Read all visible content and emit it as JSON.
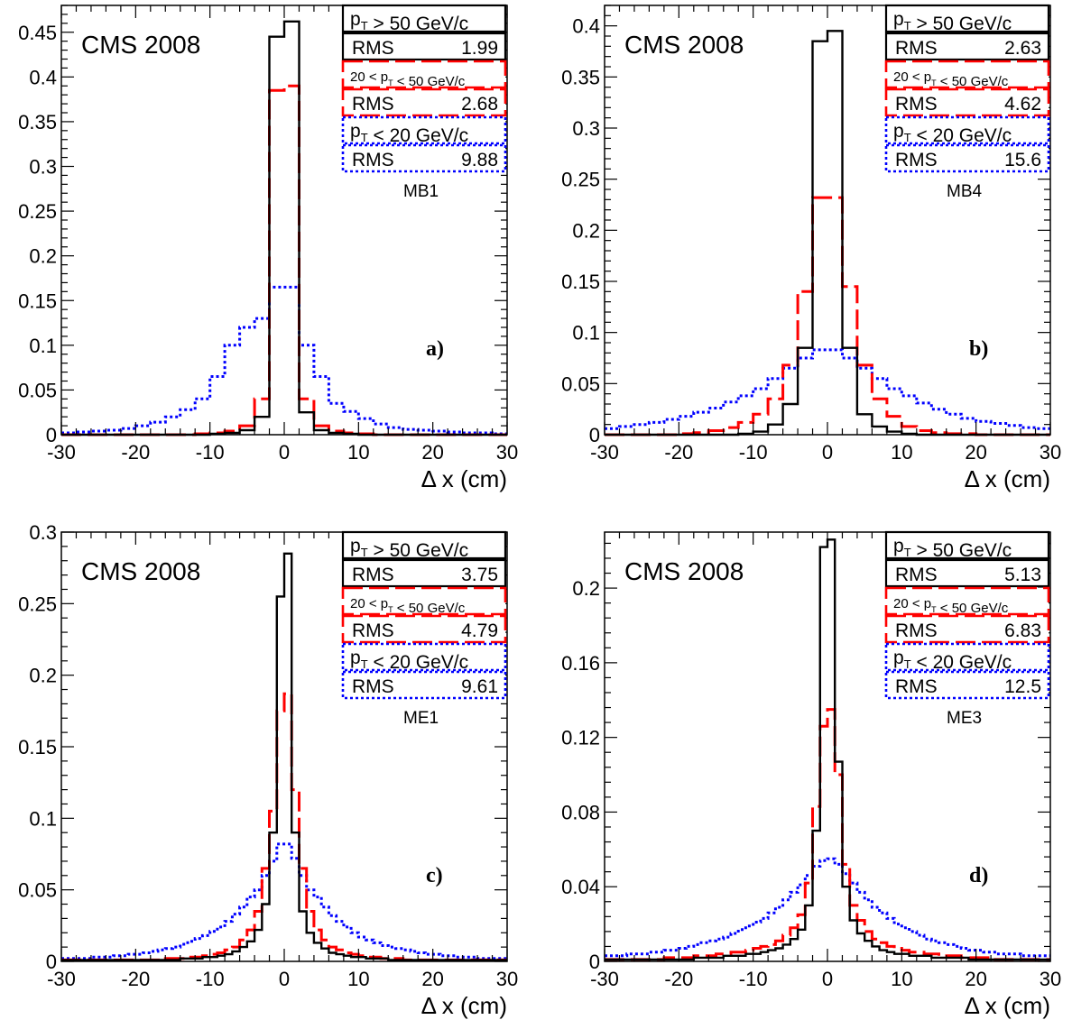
{
  "figure": {
    "experiment_label": "CMS 2008",
    "x_label": "Δ x (cm)",
    "colors": {
      "high_pt": "#000000",
      "mid_pt": "#ff0000",
      "low_pt": "#0000ff"
    }
  },
  "chart_data": [
    {
      "panel": "a)",
      "type": "histogram",
      "station": "MB1",
      "title": "CMS 2008",
      "xlabel": "Δ x (cm)",
      "ylabel": "",
      "xlim": [
        -30,
        30
      ],
      "ylim": [
        0,
        0.48
      ],
      "x_ticks": [
        -30,
        -20,
        -10,
        0,
        10,
        20,
        30
      ],
      "y_ticks": [
        0,
        0.05,
        0.1,
        0.15,
        0.2,
        0.25,
        0.3,
        0.35,
        0.4,
        0.45
      ],
      "y_tick_labels": [
        "0",
        "0.05",
        "0.1",
        "0.15",
        "0.2",
        "0.25",
        "0.3",
        "0.35",
        "0.4",
        "0.45"
      ],
      "bin_width": 2,
      "bin_centers": [
        -29,
        -27,
        -25,
        -23,
        -21,
        -19,
        -17,
        -15,
        -13,
        -11,
        -9,
        -7,
        -5,
        -3,
        -1,
        1,
        3,
        5,
        7,
        9,
        11,
        13,
        15,
        17,
        19,
        21,
        23,
        25,
        27,
        29
      ],
      "series": [
        {
          "name": "p_T > 50 GeV/c",
          "style": "solid",
          "rms": "1.99",
          "values": [
            0,
            0,
            0,
            0,
            0,
            0,
            0,
            0,
            0,
            0,
            0.001,
            0.002,
            0.005,
            0.02,
            0.445,
            0.462,
            0.025,
            0.005,
            0.002,
            0.001,
            0,
            0,
            0,
            0,
            0,
            0,
            0,
            0,
            0,
            0
          ]
        },
        {
          "name": "20 < p_T < 50 GeV/c",
          "style": "dashed",
          "rms": "2.68",
          "values": [
            0,
            0,
            0,
            0,
            0,
            0,
            0,
            0,
            0,
            0.001,
            0.002,
            0.004,
            0.01,
            0.04,
            0.385,
            0.39,
            0.04,
            0.01,
            0.004,
            0.002,
            0.001,
            0,
            0,
            0,
            0,
            0,
            0,
            0,
            0,
            0
          ]
        },
        {
          "name": "p_T < 20 GeV/c",
          "style": "dotted",
          "rms": "9.88",
          "values": [
            0.002,
            0.003,
            0.004,
            0.005,
            0.007,
            0.01,
            0.014,
            0.02,
            0.028,
            0.04,
            0.065,
            0.1,
            0.12,
            0.13,
            0.165,
            0.165,
            0.1,
            0.065,
            0.035,
            0.026,
            0.018,
            0.012,
            0.008,
            0.006,
            0.005,
            0.004,
            0.003,
            0.002,
            0.002,
            0.001
          ]
        }
      ]
    },
    {
      "panel": "b)",
      "type": "histogram",
      "station": "MB4",
      "title": "CMS 2008",
      "xlabel": "Δ x (cm)",
      "ylabel": "",
      "xlim": [
        -30,
        30
      ],
      "ylim": [
        0,
        0.42
      ],
      "x_ticks": [
        -30,
        -20,
        -10,
        0,
        10,
        20,
        30
      ],
      "y_ticks": [
        0,
        0.05,
        0.1,
        0.15,
        0.2,
        0.25,
        0.3,
        0.35,
        0.4
      ],
      "y_tick_labels": [
        "0",
        "0.05",
        "0.1",
        "0.15",
        "0.2",
        "0.25",
        "0.3",
        "0.35",
        "0.4"
      ],
      "bin_width": 2,
      "bin_centers": [
        -29,
        -27,
        -25,
        -23,
        -21,
        -19,
        -17,
        -15,
        -13,
        -11,
        -9,
        -7,
        -5,
        -3,
        -1,
        1,
        3,
        5,
        7,
        9,
        11,
        13,
        15,
        17,
        19,
        21,
        23,
        25,
        27,
        29
      ],
      "series": [
        {
          "name": "p_T > 50 GeV/c",
          "style": "solid",
          "rms": "2.63",
          "values": [
            0,
            0,
            0,
            0,
            0,
            0,
            0,
            0,
            0,
            0.001,
            0.003,
            0.01,
            0.03,
            0.085,
            0.385,
            0.395,
            0.085,
            0.02,
            0.008,
            0.003,
            0.001,
            0,
            0,
            0,
            0,
            0,
            0,
            0,
            0,
            0
          ]
        },
        {
          "name": "20 < p_T < 50 GeV/c",
          "style": "dashed",
          "rms": "4.62",
          "values": [
            0,
            0,
            0,
            0,
            0,
            0.001,
            0.002,
            0.004,
            0.007,
            0.012,
            0.02,
            0.035,
            0.068,
            0.14,
            0.232,
            0.232,
            0.145,
            0.068,
            0.035,
            0.018,
            0.008,
            0.004,
            0.002,
            0.001,
            0.001,
            0,
            0,
            0,
            0,
            0
          ]
        },
        {
          "name": "p_T < 20 GeV/c",
          "style": "dotted",
          "rms": "15.6",
          "values": [
            0.006,
            0.008,
            0.01,
            0.012,
            0.015,
            0.018,
            0.022,
            0.026,
            0.032,
            0.038,
            0.045,
            0.055,
            0.065,
            0.075,
            0.083,
            0.083,
            0.075,
            0.065,
            0.055,
            0.045,
            0.038,
            0.031,
            0.025,
            0.02,
            0.016,
            0.013,
            0.011,
            0.009,
            0.007,
            0.006
          ]
        }
      ]
    },
    {
      "panel": "c)",
      "type": "histogram",
      "station": "ME1",
      "title": "CMS 2008",
      "xlabel": "Δ x (cm)",
      "ylabel": "",
      "xlim": [
        -30,
        30
      ],
      "ylim": [
        0,
        0.3
      ],
      "x_ticks": [
        -30,
        -20,
        -10,
        0,
        10,
        20,
        30
      ],
      "y_ticks": [
        0,
        0.05,
        0.1,
        0.15,
        0.2,
        0.25,
        0.3
      ],
      "y_tick_labels": [
        "0",
        "0.05",
        "0.1",
        "0.15",
        "0.2",
        "0.25",
        "0.3"
      ],
      "bin_width": 1,
      "bin_centers": [
        -29.5,
        -28.5,
        -27.5,
        -26.5,
        -25.5,
        -24.5,
        -23.5,
        -22.5,
        -21.5,
        -20.5,
        -19.5,
        -18.5,
        -17.5,
        -16.5,
        -15.5,
        -14.5,
        -13.5,
        -12.5,
        -11.5,
        -10.5,
        -9.5,
        -8.5,
        -7.5,
        -6.5,
        -5.5,
        -4.5,
        -3.5,
        -2.5,
        -1.5,
        -0.5,
        0.5,
        1.5,
        2.5,
        3.5,
        4.5,
        5.5,
        6.5,
        7.5,
        8.5,
        9.5,
        10.5,
        11.5,
        12.5,
        13.5,
        14.5,
        15.5,
        16.5,
        17.5,
        18.5,
        19.5,
        20.5,
        21.5,
        22.5,
        23.5,
        24.5,
        25.5,
        26.5,
        27.5,
        28.5,
        29.5
      ],
      "series": [
        {
          "name": "p_T > 50 GeV/c",
          "style": "solid",
          "rms": "3.75",
          "values": [
            0.001,
            0.001,
            0.001,
            0.001,
            0.001,
            0.001,
            0.001,
            0.001,
            0.001,
            0.001,
            0.001,
            0.001,
            0.001,
            0.001,
            0.001,
            0.001,
            0.002,
            0.002,
            0.002,
            0.003,
            0.003,
            0.004,
            0.005,
            0.007,
            0.01,
            0.014,
            0.022,
            0.04,
            0.09,
            0.255,
            0.285,
            0.09,
            0.035,
            0.02,
            0.013,
            0.009,
            0.006,
            0.005,
            0.004,
            0.003,
            0.003,
            0.002,
            0.002,
            0.002,
            0.001,
            0.001,
            0.001,
            0.001,
            0.001,
            0.001,
            0.001,
            0.001,
            0.001,
            0.001,
            0.001,
            0.001,
            0.001,
            0.001,
            0.001,
            0.001
          ]
        },
        {
          "name": "20 < p_T < 50 GeV/c",
          "style": "dashed",
          "rms": "4.79",
          "values": [
            0.001,
            0.001,
            0.001,
            0.001,
            0.001,
            0.001,
            0.001,
            0.001,
            0.001,
            0.001,
            0.001,
            0.001,
            0.001,
            0.001,
            0.002,
            0.002,
            0.002,
            0.003,
            0.003,
            0.004,
            0.005,
            0.006,
            0.008,
            0.01,
            0.015,
            0.022,
            0.035,
            0.065,
            0.105,
            0.175,
            0.187,
            0.12,
            0.065,
            0.035,
            0.022,
            0.015,
            0.01,
            0.008,
            0.006,
            0.005,
            0.004,
            0.003,
            0.003,
            0.002,
            0.002,
            0.002,
            0.001,
            0.001,
            0.001,
            0.001,
            0.001,
            0.001,
            0.001,
            0.001,
            0.001,
            0.001,
            0.001,
            0.001,
            0.001,
            0.001
          ]
        },
        {
          "name": "p_T < 20 GeV/c",
          "style": "dotted",
          "rms": "9.61",
          "values": [
            0.002,
            0.002,
            0.002,
            0.002,
            0.003,
            0.003,
            0.003,
            0.004,
            0.004,
            0.005,
            0.005,
            0.006,
            0.007,
            0.008,
            0.009,
            0.01,
            0.012,
            0.014,
            0.016,
            0.018,
            0.021,
            0.024,
            0.028,
            0.033,
            0.038,
            0.045,
            0.05,
            0.06,
            0.07,
            0.082,
            0.082,
            0.072,
            0.06,
            0.05,
            0.045,
            0.038,
            0.032,
            0.028,
            0.024,
            0.02,
            0.017,
            0.015,
            0.013,
            0.011,
            0.01,
            0.009,
            0.008,
            0.007,
            0.006,
            0.005,
            0.005,
            0.004,
            0.004,
            0.003,
            0.003,
            0.003,
            0.002,
            0.002,
            0.002,
            0.002
          ]
        }
      ]
    },
    {
      "panel": "d)",
      "type": "histogram",
      "station": "ME3",
      "title": "CMS 2008",
      "xlabel": "Δ x (cm)",
      "ylabel": "",
      "xlim": [
        -30,
        30
      ],
      "ylim": [
        0,
        0.23
      ],
      "x_ticks": [
        -30,
        -20,
        -10,
        0,
        10,
        20,
        30
      ],
      "y_ticks": [
        0,
        0.04,
        0.08,
        0.12,
        0.16,
        0.2
      ],
      "y_tick_labels": [
        "0",
        "0.04",
        "0.08",
        "0.12",
        "0.16",
        "0.2"
      ],
      "bin_width": 1,
      "bin_centers": [
        -29.5,
        -28.5,
        -27.5,
        -26.5,
        -25.5,
        -24.5,
        -23.5,
        -22.5,
        -21.5,
        -20.5,
        -19.5,
        -18.5,
        -17.5,
        -16.5,
        -15.5,
        -14.5,
        -13.5,
        -12.5,
        -11.5,
        -10.5,
        -9.5,
        -8.5,
        -7.5,
        -6.5,
        -5.5,
        -4.5,
        -3.5,
        -2.5,
        -1.5,
        -0.5,
        0.5,
        1.5,
        2.5,
        3.5,
        4.5,
        5.5,
        6.5,
        7.5,
        8.5,
        9.5,
        10.5,
        11.5,
        12.5,
        13.5,
        14.5,
        15.5,
        16.5,
        17.5,
        18.5,
        19.5,
        20.5,
        21.5,
        22.5,
        23.5,
        24.5,
        25.5,
        26.5,
        27.5,
        28.5,
        29.5
      ],
      "series": [
        {
          "name": "p_T > 50 GeV/c",
          "style": "solid",
          "rms": "5.13",
          "values": [
            0.001,
            0.001,
            0.001,
            0.001,
            0.001,
            0.001,
            0.001,
            0.001,
            0.001,
            0.001,
            0.001,
            0.001,
            0.002,
            0.002,
            0.002,
            0.002,
            0.003,
            0.003,
            0.003,
            0.004,
            0.004,
            0.005,
            0.006,
            0.007,
            0.009,
            0.012,
            0.017,
            0.03,
            0.07,
            0.222,
            0.226,
            0.107,
            0.04,
            0.022,
            0.015,
            0.011,
            0.008,
            0.006,
            0.005,
            0.004,
            0.004,
            0.003,
            0.003,
            0.003,
            0.002,
            0.002,
            0.002,
            0.002,
            0.002,
            0.001,
            0.001,
            0.001,
            0.001,
            0.001,
            0.001,
            0.001,
            0.001,
            0.001,
            0.001,
            0.001
          ]
        },
        {
          "name": "20 < p_T < 50 GeV/c",
          "style": "dashed",
          "rms": "6.83",
          "values": [
            0.001,
            0.001,
            0.001,
            0.001,
            0.001,
            0.001,
            0.001,
            0.001,
            0.002,
            0.002,
            0.002,
            0.002,
            0.003,
            0.003,
            0.003,
            0.004,
            0.004,
            0.005,
            0.005,
            0.006,
            0.007,
            0.008,
            0.009,
            0.011,
            0.014,
            0.018,
            0.025,
            0.042,
            0.083,
            0.126,
            0.135,
            0.1,
            0.052,
            0.03,
            0.022,
            0.016,
            0.012,
            0.01,
            0.008,
            0.007,
            0.006,
            0.005,
            0.005,
            0.004,
            0.004,
            0.003,
            0.003,
            0.003,
            0.002,
            0.002,
            0.002,
            0.002,
            0.001,
            0.001,
            0.001,
            0.001,
            0.001,
            0.001,
            0.001,
            0.001
          ]
        },
        {
          "name": "p_T < 20 GeV/c",
          "style": "dotted",
          "rms": "12.5",
          "values": [
            0.003,
            0.003,
            0.003,
            0.004,
            0.004,
            0.004,
            0.005,
            0.005,
            0.006,
            0.006,
            0.007,
            0.008,
            0.009,
            0.01,
            0.011,
            0.012,
            0.013,
            0.015,
            0.017,
            0.019,
            0.021,
            0.023,
            0.026,
            0.029,
            0.033,
            0.037,
            0.041,
            0.046,
            0.051,
            0.054,
            0.055,
            0.052,
            0.047,
            0.042,
            0.037,
            0.033,
            0.029,
            0.026,
            0.023,
            0.02,
            0.018,
            0.016,
            0.014,
            0.012,
            0.011,
            0.01,
            0.009,
            0.008,
            0.007,
            0.006,
            0.006,
            0.005,
            0.005,
            0.004,
            0.004,
            0.004,
            0.003,
            0.003,
            0.003,
            0.003
          ]
        }
      ]
    }
  ]
}
